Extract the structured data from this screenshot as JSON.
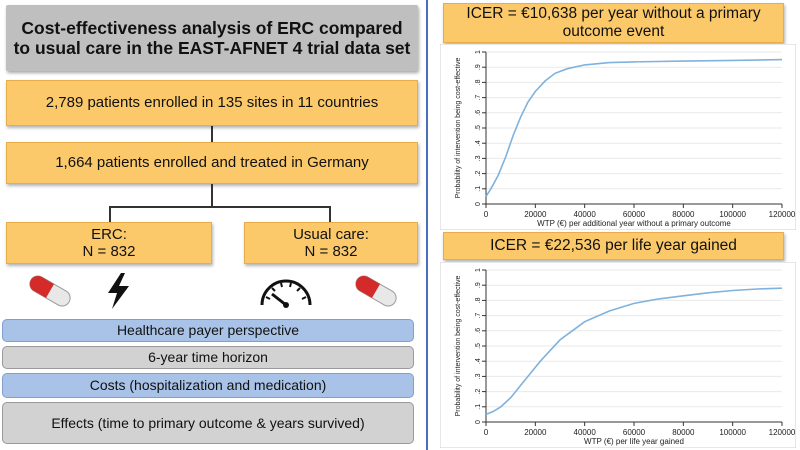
{
  "flow": {
    "title": "Cost-effectiveness analysis of ERC compared to usual care in the EAST-AFNET 4 trial data set",
    "enrolled_all": "2,789 patients enrolled in 135 sites in 11 countries",
    "enrolled_germany": "1,664 patients enrolled and treated in Germany",
    "arm_erc": {
      "label": "ERC:",
      "n": "N = 832"
    },
    "arm_usual": {
      "label": "Usual care:",
      "n": "N = 832"
    }
  },
  "icons": [
    "pill-icon",
    "lightning-bolt-icon",
    "speedometer-gauge-icon",
    "pill-icon"
  ],
  "methods": {
    "perspective": "Healthcare payer perspective",
    "horizon": "6-year time horizon",
    "costs": "Costs (hospitalization and medication)",
    "effects": "Effects (time to primary outcome & years survived)"
  },
  "icer": {
    "outcome": "ICER = €10,638 per year without a primary outcome event",
    "life_year": "ICER = €22,536 per life year gained"
  },
  "colors": {
    "accent_orange": "#fbc96a",
    "blue_pill": "#a9c3e8",
    "gray_pill": "#d2d2d2",
    "curve": "#7fb2dd"
  },
  "chart_data": [
    {
      "type": "line",
      "ylabel": "Probability of intervention being cost-effective",
      "xlabel": "WTP (€) per additional year without a primary outcome",
      "xlim": [
        0,
        120000
      ],
      "ylim": [
        0,
        1
      ],
      "xticks": [
        "0",
        "20000",
        "40000",
        "60000",
        "80000",
        "100000",
        "120000"
      ],
      "yticks": [
        "0",
        ".1",
        ".2",
        ".3",
        ".4",
        ".5",
        ".6",
        ".7",
        ".8",
        ".9",
        "1"
      ],
      "series": [
        {
          "x": [
            0,
            2000,
            5000,
            8000,
            11000,
            14000,
            17000,
            20000,
            24000,
            28000,
            33000,
            40000,
            50000,
            60000,
            80000,
            100000,
            120000
          ],
          "y": [
            0.05,
            0.1,
            0.19,
            0.31,
            0.45,
            0.57,
            0.67,
            0.74,
            0.81,
            0.86,
            0.89,
            0.915,
            0.93,
            0.935,
            0.94,
            0.945,
            0.95
          ]
        }
      ]
    },
    {
      "type": "line",
      "ylabel": "Probability of intervention being cost-effective",
      "xlabel": "WTP (€) per life year gained",
      "xlim": [
        0,
        120000
      ],
      "ylim": [
        0,
        1
      ],
      "xticks": [
        "0",
        "20000",
        "40000",
        "60000",
        "80000",
        "100000",
        "120000"
      ],
      "yticks": [
        "0",
        ".1",
        ".2",
        ".3",
        ".4",
        ".5",
        ".6",
        ".7",
        ".8",
        ".9",
        "1"
      ],
      "series": [
        {
          "x": [
            0,
            3000,
            6000,
            10000,
            14000,
            18000,
            22000,
            26000,
            30000,
            35000,
            40000,
            50000,
            60000,
            70000,
            80000,
            90000,
            100000,
            110000,
            120000
          ],
          "y": [
            0.05,
            0.07,
            0.1,
            0.16,
            0.24,
            0.32,
            0.4,
            0.47,
            0.54,
            0.6,
            0.66,
            0.73,
            0.78,
            0.81,
            0.83,
            0.85,
            0.865,
            0.875,
            0.88
          ]
        }
      ]
    }
  ]
}
